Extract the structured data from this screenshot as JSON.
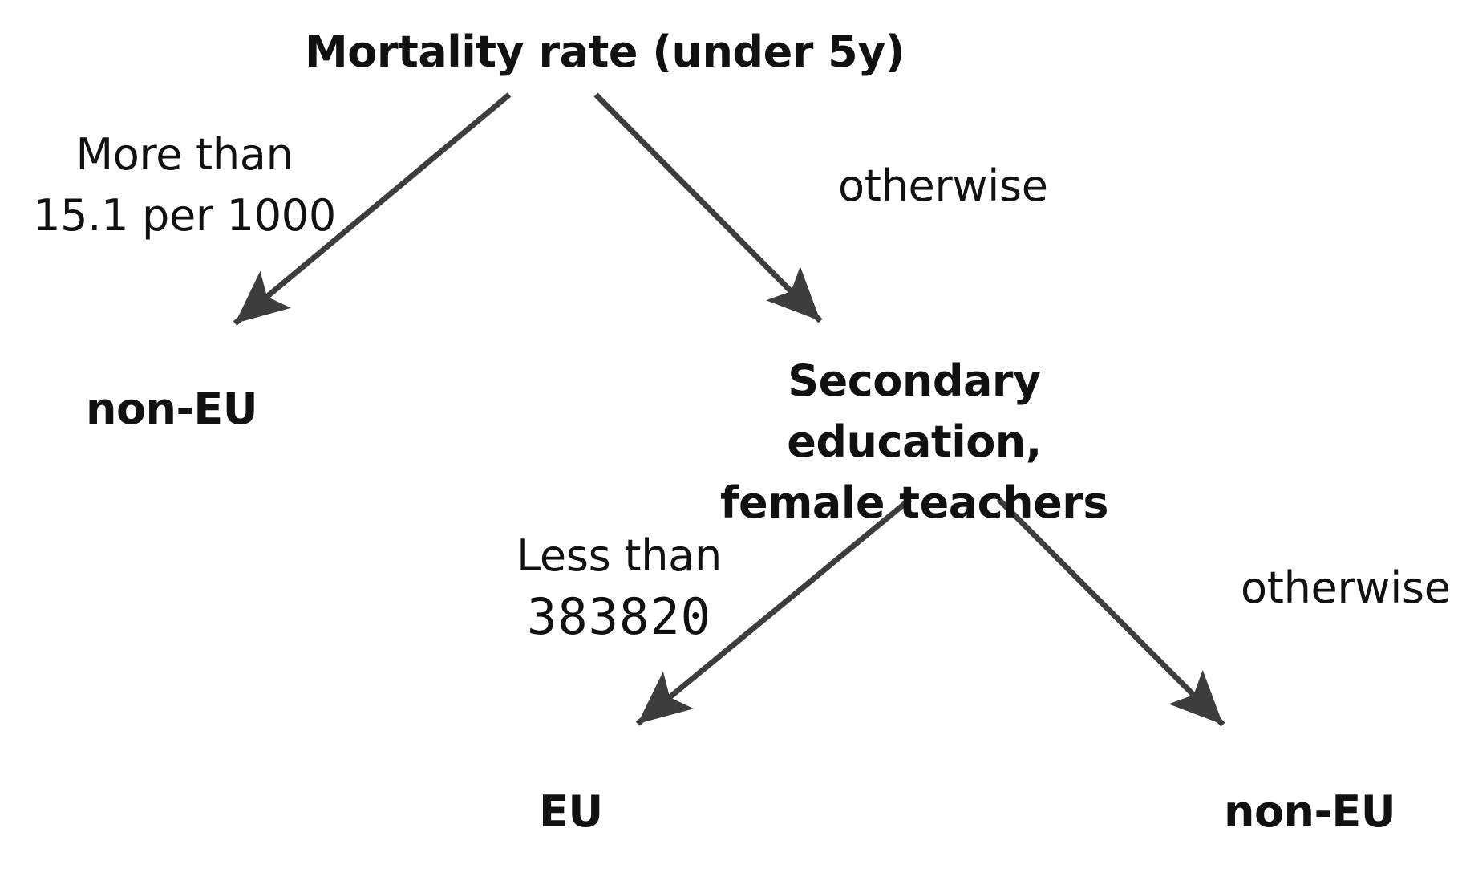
{
  "diagram": {
    "type": "decision-tree",
    "line_color": "#3d3d3d",
    "text_color": "#111111",
    "root": {
      "label": "Mortality rate (under 5y)"
    },
    "branches": [
      {
        "condition_line1": "More than",
        "condition_line2": "15.1 per 1000",
        "leaf": "non-EU"
      },
      {
        "condition": "otherwise",
        "node_line1": "Secondary education,",
        "node_line2": "female teachers",
        "branches": [
          {
            "condition_line1": "Less than",
            "condition_line2": "383820",
            "leaf": "EU"
          },
          {
            "condition": "otherwise",
            "leaf": "non-EU"
          }
        ]
      }
    ]
  }
}
